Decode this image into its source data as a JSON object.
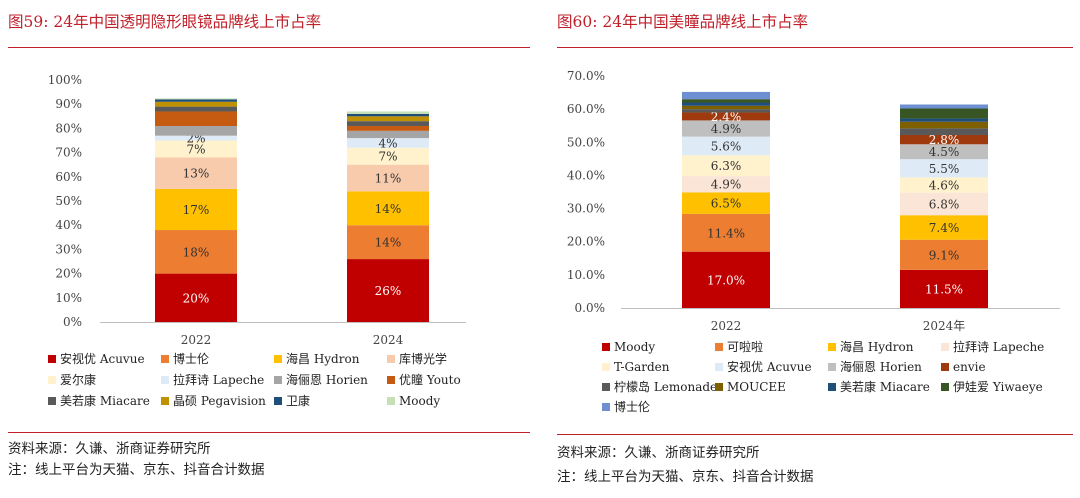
{
  "left": {
    "title": "图59:   24年中国透明隐形眼镜品牌线上市占率",
    "source": "资料来源：久谦、浙商证券研究所",
    "note": "注：线上平台为天猫、京东、抖音合计数据"
  },
  "right": {
    "title": "图60:   24年中国美瞳品牌线上市占率",
    "source": "资料来源：久谦、浙商证券研究所",
    "note": "注：线上平台为天猫、京东、抖音合计数据"
  },
  "chart_data": [
    {
      "type": "bar",
      "stacked": true,
      "title": "",
      "categories": [
        "2022",
        "2024"
      ],
      "ylim": [
        0,
        100
      ],
      "ytick_labels": [
        "0%",
        "10%",
        "20%",
        "30%",
        "40%",
        "50%",
        "60%",
        "70%",
        "80%",
        "90%",
        "100%"
      ],
      "grid": false,
      "legend": "bottom",
      "series": [
        {
          "name": "安视优 Acuvue",
          "color": "#c00000",
          "values": [
            20,
            26
          ],
          "labels": [
            "20%",
            "26%"
          ],
          "label_color": "#ffffff"
        },
        {
          "name": "博士伦",
          "color": "#ed7d31",
          "values": [
            18,
            14
          ],
          "labels": [
            "18%",
            "14%"
          ],
          "label_color": "#333333"
        },
        {
          "name": "海昌 Hydron",
          "color": "#ffc000",
          "values": [
            17,
            14
          ],
          "labels": [
            "17%",
            "14%"
          ],
          "label_color": "#333333"
        },
        {
          "name": "库博光学",
          "color": "#f8cbad",
          "values": [
            13,
            11
          ],
          "labels": [
            "13%",
            "11%"
          ],
          "label_color": "#333333"
        },
        {
          "name": "爱尔康",
          "color": "#fff2cc",
          "values": [
            7,
            7
          ],
          "labels": [
            "7%",
            "7%"
          ],
          "label_color": "#333333"
        },
        {
          "name": "拉拜诗 Lapeche",
          "color": "#deebf7",
          "values": [
            2,
            4
          ],
          "labels": [
            "2%",
            "4%"
          ],
          "label_color": "#333333"
        },
        {
          "name": "海俪恩 Horien",
          "color": "#a5a5a5",
          "values": [
            4,
            3
          ],
          "labels": [
            "",
            ""
          ],
          "label_color": "#333333"
        },
        {
          "name": "优瞳 Youto",
          "color": "#c55a11",
          "values": [
            6,
            2
          ],
          "labels": [
            "",
            ""
          ],
          "label_color": "#333333"
        },
        {
          "name": "美若康 Miacare",
          "color": "#595959",
          "values": [
            2,
            2
          ],
          "labels": [
            "",
            ""
          ],
          "label_color": "#333333"
        },
        {
          "name": "晶硕 Pegavision",
          "color": "#bf9000",
          "values": [
            2,
            2
          ],
          "labels": [
            "",
            ""
          ],
          "label_color": "#333333"
        },
        {
          "name": "卫康",
          "color": "#1f4e79",
          "values": [
            1,
            1
          ],
          "labels": [
            "",
            ""
          ],
          "label_color": "#333333"
        },
        {
          "name": "Moody",
          "color": "#c5e0b4",
          "values": [
            0.4,
            1
          ],
          "labels": [
            "",
            ""
          ],
          "label_color": "#333333"
        }
      ]
    },
    {
      "type": "bar",
      "stacked": true,
      "title": "",
      "categories": [
        "2022",
        "2024年"
      ],
      "ylim": [
        0,
        70
      ],
      "ytick_labels": [
        "0.0%",
        "10.0%",
        "20.0%",
        "30.0%",
        "40.0%",
        "50.0%",
        "60.0%",
        "70.0%"
      ],
      "grid": false,
      "legend": "bottom",
      "series": [
        {
          "name": "Moody",
          "color": "#c00000",
          "values": [
            17.0,
            11.5
          ],
          "labels": [
            "17.0%",
            "11.5%"
          ],
          "label_color": "#ffffff"
        },
        {
          "name": "可啦啦",
          "color": "#ed7d31",
          "values": [
            11.4,
            9.1
          ],
          "labels": [
            "11.4%",
            "9.1%"
          ],
          "label_color": "#333333"
        },
        {
          "name": "海昌 Hydron",
          "color": "#ffc000",
          "values": [
            6.5,
            7.4
          ],
          "labels": [
            "6.5%",
            "7.4%"
          ],
          "label_color": "#333333"
        },
        {
          "name": "拉拜诗 Lapeche",
          "color": "#fbe5d6",
          "values": [
            4.9,
            6.8
          ],
          "labels": [
            "4.9%",
            "6.8%"
          ],
          "label_color": "#333333"
        },
        {
          "name": "T-Garden",
          "color": "#fff2cc",
          "values": [
            6.3,
            4.6
          ],
          "labels": [
            "6.3%",
            "4.6%"
          ],
          "label_color": "#333333"
        },
        {
          "name": "安视优 Acuvue",
          "color": "#deebf7",
          "values": [
            5.6,
            5.5
          ],
          "labels": [
            "5.6%",
            "5.5%"
          ],
          "label_color": "#333333"
        },
        {
          "name": "海俪恩 Horien",
          "color": "#bfbfbf",
          "values": [
            4.9,
            4.5
          ],
          "labels": [
            "4.9%",
            "4.5%"
          ],
          "label_color": "#333333"
        },
        {
          "name": "envie",
          "color": "#9e3a0e",
          "values": [
            2.4,
            2.8
          ],
          "labels": [
            "2.4%",
            "2.8%"
          ],
          "label_color": "#ffffff"
        },
        {
          "name": "柠檬岛 Lemonade",
          "color": "#595959",
          "values": [
            1.0,
            2.0
          ],
          "labels": [
            "",
            ""
          ],
          "label_color": "#333333"
        },
        {
          "name": "MOUCEE",
          "color": "#7f6000",
          "values": [
            1.0,
            2.0
          ],
          "labels": [
            "",
            ""
          ],
          "label_color": "#333333"
        },
        {
          "name": "美若康 Miacare",
          "color": "#1f4e79",
          "values": [
            1.0,
            1.0
          ],
          "labels": [
            "",
            ""
          ],
          "label_color": "#333333"
        },
        {
          "name": "伊娃爱 Yiwaeye",
          "color": "#375623",
          "values": [
            1.0,
            3.0
          ],
          "labels": [
            "",
            ""
          ],
          "label_color": "#333333"
        },
        {
          "name": "博士伦",
          "color": "#6f8fd3",
          "values": [
            2.2,
            1.2
          ],
          "labels": [
            "",
            ""
          ],
          "label_color": "#333333"
        }
      ]
    }
  ]
}
